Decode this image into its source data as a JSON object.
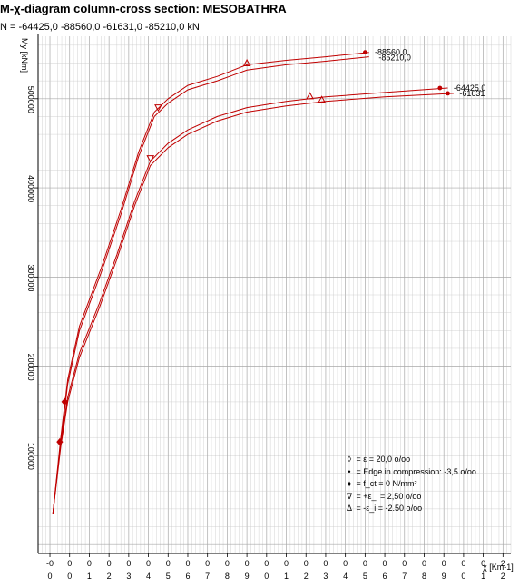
{
  "header": {
    "title": "M-χ-diagram column-cross section: MESOBATHRA",
    "subtitle": "N = -64425,0 -88560,0 -61631,0 -85210,0 kN"
  },
  "legend": [
    {
      "symbol": "◊",
      "text": "= ε = 20,0 o/oo"
    },
    {
      "symbol": "•",
      "text": "= Edge in compression: -3,5 o/oo"
    },
    {
      "symbol": "♦",
      "text": "= f_ct = 0 N/mm²"
    },
    {
      "symbol": "∇",
      "text": "= +ε_i = 2,50 o/oo"
    },
    {
      "symbol": "Δ",
      "text": "= -ε_i = -2.50 o/oo"
    }
  ],
  "colors": {
    "curve": "#c00000",
    "grid": "#c8c8c8",
    "axis": "#000000"
  },
  "chart_data": {
    "type": "line",
    "title": "M-χ-diagram column-cross section: MESOBATHRA",
    "ylabel": "My [kNm]",
    "xlabel": "χ [Km-1]",
    "grid": true,
    "x_tick_labels": [
      [
        "-0",
        "0"
      ],
      [
        "0",
        "0"
      ],
      [
        "0",
        "1"
      ],
      [
        "0",
        "2"
      ],
      [
        "0",
        "3"
      ],
      [
        "0",
        "4"
      ],
      [
        "0",
        "5"
      ],
      [
        "0",
        "6"
      ],
      [
        "0",
        "7"
      ],
      [
        "0",
        "8"
      ],
      [
        "0",
        "9"
      ],
      [
        "0",
        "0"
      ],
      [
        "0",
        "1"
      ],
      [
        "0",
        "2"
      ],
      [
        "0",
        "3"
      ],
      [
        "0",
        "4"
      ],
      [
        "0",
        "5"
      ],
      [
        "0",
        "6"
      ],
      [
        "0",
        "7"
      ],
      [
        "0",
        "8"
      ],
      [
        "0",
        "9"
      ],
      [
        "0",
        "0"
      ],
      [
        "0",
        "1"
      ],
      [
        "2",
        "2"
      ]
    ],
    "y_ticks": [
      100000,
      200000,
      300000,
      400000,
      500000
    ],
    "y_tick_labels": [
      "100000",
      "200000",
      "300000",
      "400000",
      "500000"
    ],
    "ylim": [
      -10000,
      570000
    ],
    "xlim": [
      -0.6,
      23.4
    ],
    "series": [
      {
        "name": "-88560,0",
        "points": [
          [
            0.15,
            35000
          ],
          [
            0.55,
            120000
          ],
          [
            0.9,
            185000
          ],
          [
            1.5,
            245000
          ],
          [
            2.6,
            310000
          ],
          [
            3.6,
            375000
          ],
          [
            4.5,
            440000
          ],
          [
            5.3,
            485000
          ],
          [
            6.0,
            500000
          ],
          [
            7.0,
            515000
          ],
          [
            8.5,
            525000
          ],
          [
            10.0,
            538000
          ],
          [
            12.0,
            543000
          ],
          [
            14.0,
            547000
          ],
          [
            16.2,
            552000
          ]
        ]
      },
      {
        "name": "-85210,0",
        "points": [
          [
            0.15,
            35000
          ],
          [
            0.55,
            115000
          ],
          [
            0.9,
            180000
          ],
          [
            1.5,
            240000
          ],
          [
            2.6,
            305000
          ],
          [
            3.6,
            370000
          ],
          [
            4.5,
            435000
          ],
          [
            5.3,
            480000
          ],
          [
            6.0,
            495000
          ],
          [
            7.0,
            510000
          ],
          [
            8.5,
            520000
          ],
          [
            10.0,
            532000
          ],
          [
            12.0,
            538000
          ],
          [
            14.0,
            542000
          ],
          [
            16.2,
            547000
          ]
        ]
      },
      {
        "name": "-64425,0",
        "points": [
          [
            0.15,
            35000
          ],
          [
            0.55,
            115000
          ],
          [
            0.9,
            165000
          ],
          [
            1.5,
            215000
          ],
          [
            2.5,
            270000
          ],
          [
            3.4,
            325000
          ],
          [
            4.3,
            385000
          ],
          [
            5.1,
            430000
          ],
          [
            6.0,
            450000
          ],
          [
            7.0,
            465000
          ],
          [
            8.5,
            480000
          ],
          [
            10.0,
            490000
          ],
          [
            12.0,
            497000
          ],
          [
            14.0,
            502000
          ],
          [
            17.0,
            507000
          ],
          [
            20.2,
            512000
          ]
        ]
      },
      {
        "name": "-61631",
        "points": [
          [
            0.15,
            35000
          ],
          [
            0.55,
            110000
          ],
          [
            0.9,
            160000
          ],
          [
            1.5,
            210000
          ],
          [
            2.5,
            265000
          ],
          [
            3.4,
            320000
          ],
          [
            4.3,
            380000
          ],
          [
            5.1,
            425000
          ],
          [
            6.0,
            445000
          ],
          [
            7.0,
            460000
          ],
          [
            8.5,
            475000
          ],
          [
            10.0,
            485000
          ],
          [
            12.0,
            492000
          ],
          [
            14.0,
            497000
          ],
          [
            17.0,
            502000
          ],
          [
            20.5,
            506000
          ]
        ]
      }
    ],
    "curve_labels": [
      {
        "text": "-88560,0",
        "x": 16.4,
        "y": 552000
      },
      {
        "text": "-85210,0",
        "x": 16.6,
        "y": 546000
      },
      {
        "text": "-64425,0",
        "x": 20.4,
        "y": 512000
      },
      {
        "text": "-61631",
        "x": 20.7,
        "y": 506000
      }
    ],
    "markers": [
      {
        "type": "diamond",
        "x": 0.5,
        "y": 115000
      },
      {
        "type": "diamond",
        "x": 0.75,
        "y": 160000
      },
      {
        "type": "nabla",
        "x": 5.5,
        "y": 490000
      },
      {
        "type": "nabla",
        "x": 5.1,
        "y": 433000
      },
      {
        "type": "delta",
        "x": 10.0,
        "y": 540000
      },
      {
        "type": "delta",
        "x": 13.2,
        "y": 503000
      },
      {
        "type": "delta",
        "x": 13.8,
        "y": 499000
      },
      {
        "type": "dot",
        "x": 16.0,
        "y": 552000
      },
      {
        "type": "dot",
        "x": 19.8,
        "y": 512000
      },
      {
        "type": "dot",
        "x": 20.2,
        "y": 506000
      }
    ]
  }
}
